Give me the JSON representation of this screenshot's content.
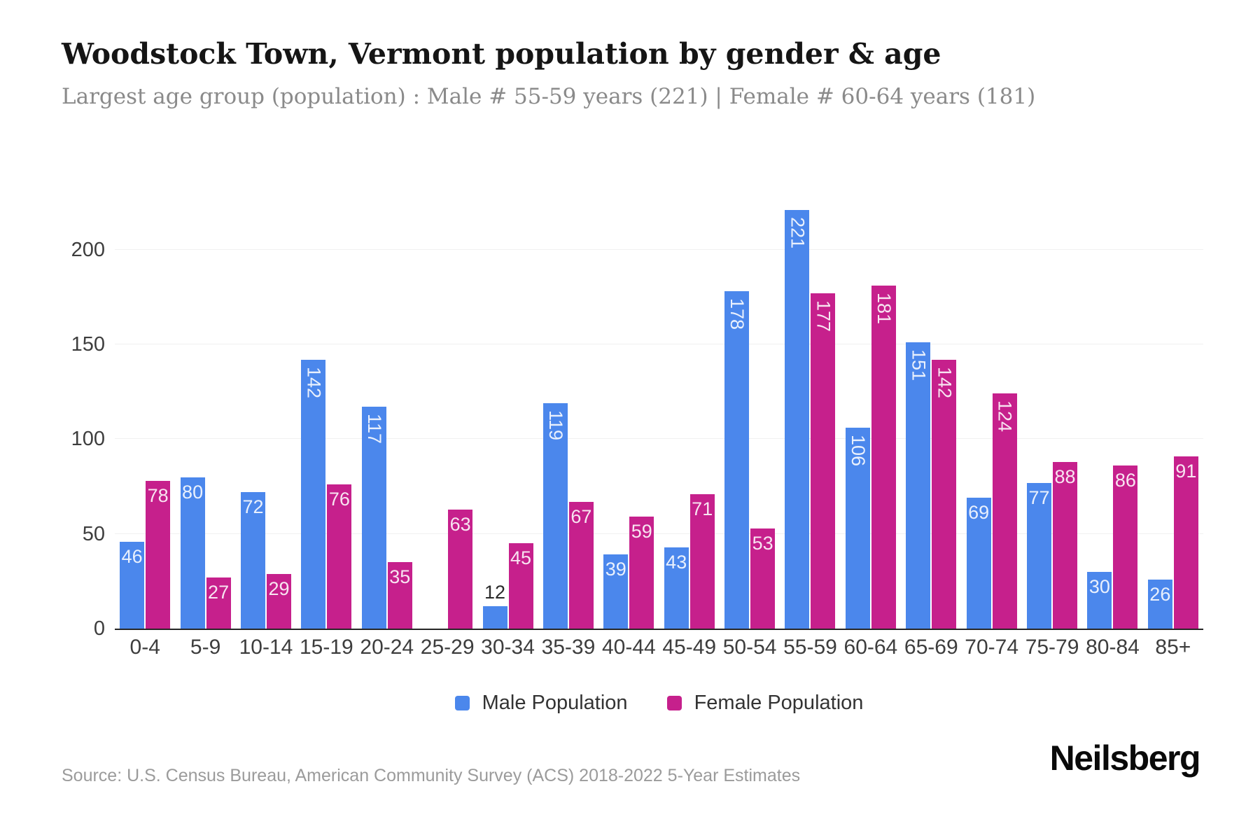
{
  "title": "Woodstock Town, Vermont population by gender & age",
  "subtitle": "Largest age group (population) : Male # 55-59 years (221) | Female # 60-64 years (181)",
  "source": "Source: U.S. Census Bureau, American Community Survey (ACS) 2018-2022 5-Year Estimates",
  "brand": "Neilsberg",
  "colors": {
    "male": "#4b87ec",
    "female": "#c6208c",
    "grid": "#f0f0f0",
    "axis": "#262626",
    "inside_label": "#ffffff",
    "outside_label": "#2b2b2b"
  },
  "legend": {
    "items": [
      {
        "label": "Male Population",
        "series": 0
      },
      {
        "label": "Female Population",
        "series": 1
      }
    ]
  },
  "chart_data": {
    "type": "bar",
    "categories": [
      "0-4",
      "5-9",
      "10-14",
      "15-19",
      "20-24",
      "25-29",
      "30-34",
      "35-39",
      "40-44",
      "45-49",
      "50-54",
      "55-59",
      "60-64",
      "65-69",
      "70-74",
      "75-79",
      "80-84",
      "85+"
    ],
    "series": [
      {
        "name": "Male Population",
        "color": "#4b87ec",
        "values": [
          46,
          80,
          72,
          142,
          117,
          0,
          12,
          119,
          39,
          43,
          178,
          221,
          106,
          151,
          69,
          77,
          30,
          26
        ]
      },
      {
        "name": "Female Population",
        "color": "#c6208c",
        "values": [
          78,
          27,
          29,
          76,
          35,
          63,
          45,
          67,
          59,
          71,
          53,
          177,
          181,
          142,
          124,
          88,
          86,
          91
        ]
      }
    ],
    "title": "Woodstock Town, Vermont population by gender & age",
    "xlabel": "",
    "ylabel": "",
    "ylim": [
      0,
      225
    ],
    "yticks": [
      0,
      50,
      100,
      150,
      200
    ],
    "grid": true,
    "legend_position": "bottom",
    "value_labels": true
  }
}
